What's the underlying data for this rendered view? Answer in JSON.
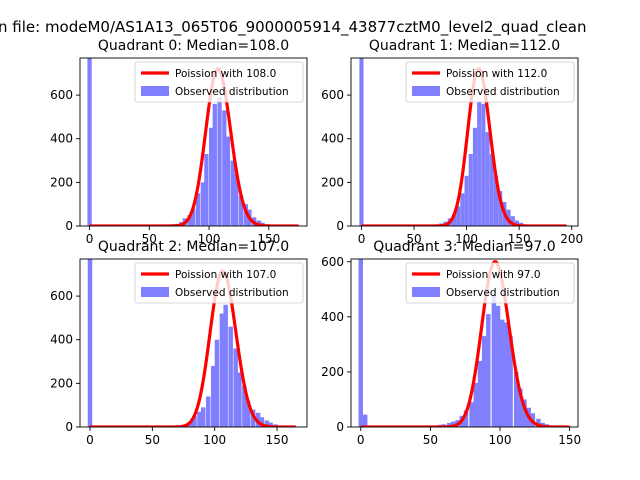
{
  "figure": {
    "suptitle": "n file: modeM0/AS1A13_065T06_9000005914_43877cztM0_level2_quad_clean"
  },
  "colors": {
    "observed": "#8080ff",
    "poisson": "#ff0000",
    "axis": "#000000"
  },
  "chart_data": [
    {
      "type": "bar",
      "title": "Quadrant 0: Median=108.0",
      "xlim": [
        -8,
        182
      ],
      "ylim": [
        0,
        770
      ],
      "xticks": [
        0,
        50,
        100,
        150
      ],
      "yticks": [
        0,
        200,
        400,
        600
      ],
      "legend_position": "top-right",
      "series": [
        {
          "name": "Observed distribution",
          "type": "histogram",
          "bin_width": 3.6,
          "bins": [
            [
              -1.8,
              770
            ],
            [
              57,
              5
            ],
            [
              60,
              5
            ],
            [
              64,
              5
            ],
            [
              67,
              8
            ],
            [
              71,
              10
            ],
            [
              75,
              18
            ],
            [
              78,
              35
            ],
            [
              82,
              50
            ],
            [
              85,
              80
            ],
            [
              89,
              150
            ],
            [
              93,
              200
            ],
            [
              96,
              330
            ],
            [
              100,
              450
            ],
            [
              103,
              560
            ],
            [
              107,
              590
            ],
            [
              111,
              530
            ],
            [
              114,
              410
            ],
            [
              118,
              300
            ],
            [
              121,
              240
            ],
            [
              125,
              140
            ],
            [
              129,
              100
            ],
            [
              132,
              75
            ],
            [
              136,
              40
            ],
            [
              140,
              25
            ],
            [
              143,
              15
            ],
            [
              147,
              8
            ],
            [
              150,
              4
            ]
          ]
        },
        {
          "name": "Poission with 108.0",
          "type": "poisson-line",
          "mean": 108.0,
          "scale": 720,
          "x_range": [
            0,
            175
          ]
        }
      ]
    },
    {
      "type": "bar",
      "title": "Quadrant 1: Median=112.0",
      "xlim": [
        -10,
        206
      ],
      "ylim": [
        0,
        770
      ],
      "xticks": [
        0,
        50,
        100,
        150,
        200
      ],
      "yticks": [
        0,
        200,
        400,
        600
      ],
      "legend_position": "top-right",
      "series": [
        {
          "name": "Observed distribution",
          "type": "histogram",
          "bin_width": 3.9,
          "bins": [
            [
              -2,
              770
            ],
            [
              62,
              5
            ],
            [
              66,
              5
            ],
            [
              70,
              8
            ],
            [
              74,
              12
            ],
            [
              78,
              20
            ],
            [
              82,
              35
            ],
            [
              86,
              55
            ],
            [
              90,
              90
            ],
            [
              94,
              150
            ],
            [
              98,
              230
            ],
            [
              102,
              330
            ],
            [
              106,
              450
            ],
            [
              110,
              570
            ],
            [
              114,
              560
            ],
            [
              118,
              430
            ],
            [
              122,
              330
            ],
            [
              126,
              230
            ],
            [
              130,
              160
            ],
            [
              134,
              110
            ],
            [
              138,
              75
            ],
            [
              142,
              45
            ],
            [
              146,
              25
            ],
            [
              150,
              15
            ],
            [
              154,
              8
            ],
            [
              158,
              4
            ]
          ]
        },
        {
          "name": "Poission with 112.0",
          "type": "poisson-line",
          "mean": 112.0,
          "scale": 720,
          "x_range": [
            0,
            195
          ]
        }
      ]
    },
    {
      "type": "bar",
      "title": "Quadrant 2: Median=107.0",
      "xlim": [
        -8,
        174
      ],
      "ylim": [
        0,
        770
      ],
      "xticks": [
        0,
        50,
        100,
        150
      ],
      "yticks": [
        0,
        200,
        400,
        600
      ],
      "legend_position": "top-right",
      "series": [
        {
          "name": "Observed distribution",
          "type": "histogram",
          "bin_width": 3.6,
          "bins": [
            [
              -1.8,
              770
            ],
            [
              68,
              5
            ],
            [
              72,
              8
            ],
            [
              75,
              12
            ],
            [
              79,
              25
            ],
            [
              82,
              50
            ],
            [
              86,
              70
            ],
            [
              89,
              90
            ],
            [
              93,
              140
            ],
            [
              97,
              280
            ],
            [
              100,
              400
            ],
            [
              104,
              520
            ],
            [
              107,
              560
            ],
            [
              111,
              460
            ],
            [
              115,
              360
            ],
            [
              118,
              250
            ],
            [
              122,
              190
            ],
            [
              125,
              120
            ],
            [
              129,
              80
            ],
            [
              133,
              65
            ],
            [
              136,
              45
            ],
            [
              140,
              30
            ],
            [
              143,
              20
            ],
            [
              147,
              12
            ],
            [
              151,
              6
            ]
          ]
        },
        {
          "name": "Poission with 107.0",
          "type": "poisson-line",
          "mean": 107.0,
          "scale": 715,
          "x_range": [
            0,
            165
          ]
        }
      ]
    },
    {
      "type": "bar",
      "title": "Quadrant 3: Median=97.0",
      "xlim": [
        -7,
        156
      ],
      "ylim": [
        0,
        610
      ],
      "xticks": [
        0,
        50,
        100,
        150
      ],
      "yticks": [
        0,
        200,
        400,
        600
      ],
      "legend_position": "top-right",
      "series": [
        {
          "name": "Observed distribution",
          "type": "histogram",
          "bin_width": 3.2,
          "bins": [
            [
              -1.6,
              610
            ],
            [
              1.6,
              45
            ],
            [
              49,
              5
            ],
            [
              52,
              5
            ],
            [
              55,
              8
            ],
            [
              58,
              10
            ],
            [
              62,
              15
            ],
            [
              65,
              20
            ],
            [
              68,
              25
            ],
            [
              71,
              40
            ],
            [
              74,
              60
            ],
            [
              78,
              90
            ],
            [
              81,
              160
            ],
            [
              84,
              240
            ],
            [
              87,
              330
            ],
            [
              90,
              410
            ],
            [
              94,
              480
            ],
            [
              97,
              440
            ],
            [
              100,
              390
            ],
            [
              103,
              380
            ],
            [
              106,
              330
            ],
            [
              110,
              200
            ],
            [
              113,
              140
            ],
            [
              116,
              100
            ],
            [
              119,
              70
            ],
            [
              122,
              50
            ],
            [
              126,
              30
            ],
            [
              129,
              15
            ],
            [
              132,
              10
            ],
            [
              135,
              5
            ]
          ]
        },
        {
          "name": "Poission with 97.0",
          "type": "poisson-line",
          "mean": 97.0,
          "scale": 600,
          "x_range": [
            0,
            150
          ]
        }
      ]
    }
  ]
}
